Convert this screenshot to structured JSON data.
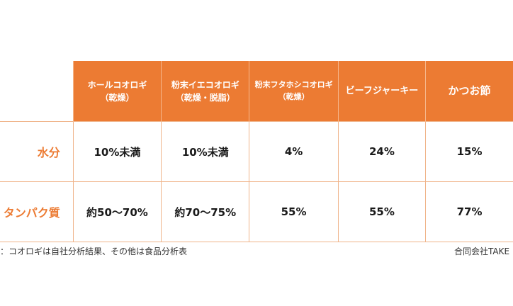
{
  "colors": {
    "accent": "#ec7b33",
    "grid": "#f0b48a",
    "text": "#1a1a1a"
  },
  "headers": [
    {
      "line1": "ホールコオロギ",
      "line2": "（乾燥）"
    },
    {
      "line1": "粉末イエコオロギ",
      "line2": "（乾燥・脱脂）"
    },
    {
      "line1": "粉末フタホシコオロギ",
      "line2": "（乾燥）"
    },
    {
      "line1": "ビーフジャーキー"
    },
    {
      "line1": "かつお節"
    }
  ],
  "rows": [
    {
      "label": "水分",
      "values": [
        "10%未満",
        "10%未満",
        "4%",
        "24%",
        "15%"
      ]
    },
    {
      "label": "タンパク質",
      "values": [
        "約50〜70%",
        "約70〜75%",
        "55%",
        "55%",
        "77%"
      ]
    }
  ],
  "footer": {
    "source": "典：コオロギは自社分析結果、その他は食品分析表",
    "credit": "合同会社TAKE"
  }
}
